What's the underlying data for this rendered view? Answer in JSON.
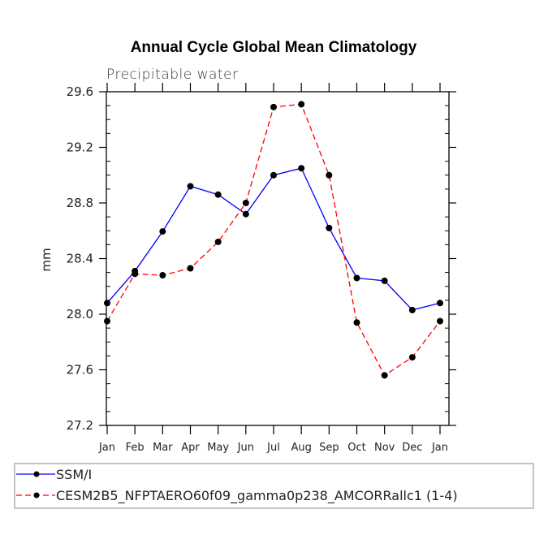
{
  "chart_data": {
    "type": "line",
    "title": "Annual Cycle Global Mean Climatology",
    "subtitle": "Precipitable water",
    "xlabel": "",
    "ylabel": "mm",
    "ylim": [
      27.2,
      29.6
    ],
    "yticks": [
      "27.2",
      "27.6",
      "28.0",
      "28.4",
      "28.8",
      "29.2",
      "29.6"
    ],
    "categories": [
      "Jan",
      "Feb",
      "Mar",
      "Apr",
      "May",
      "Jun",
      "Jul",
      "Aug",
      "Sep",
      "Oct",
      "Nov",
      "Dec",
      "Jan"
    ],
    "grid": false,
    "legend_position": "bottom",
    "series": [
      {
        "name": "SSM/I",
        "color": "#0000ff",
        "dash": false,
        "values": [
          28.08,
          28.31,
          28.595,
          28.92,
          28.86,
          28.72,
          29.0,
          29.05,
          28.62,
          28.26,
          28.24,
          28.03,
          28.08
        ]
      },
      {
        "name": "CESM2B5_NFPTAERO60f09_gamma0p238_AMCORRallc1 (1-4)",
        "color": "#ff0000",
        "dash": true,
        "values": [
          27.95,
          28.29,
          28.28,
          28.33,
          28.52,
          28.8,
          29.49,
          29.51,
          29.0,
          27.94,
          27.56,
          27.69,
          27.95
        ]
      }
    ]
  }
}
